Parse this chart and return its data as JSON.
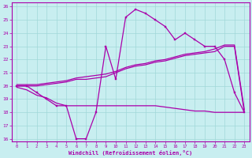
{
  "xlabel": "Windchill (Refroidissement éolien,°C)",
  "bg_color": "#c8eef0",
  "grid_color": "#a0d8d8",
  "line_color": "#aa00aa",
  "xlim": [
    -0.5,
    23.5
  ],
  "ylim": [
    15.8,
    26.3
  ],
  "xticks": [
    0,
    1,
    2,
    3,
    4,
    5,
    6,
    7,
    8,
    9,
    10,
    11,
    12,
    13,
    14,
    15,
    16,
    17,
    18,
    19,
    20,
    21,
    22,
    23
  ],
  "yticks": [
    16,
    17,
    18,
    19,
    20,
    21,
    22,
    23,
    24,
    25,
    26
  ],
  "line1_x": [
    0,
    1,
    2,
    3,
    4,
    5,
    6,
    7,
    8,
    9,
    10,
    11,
    12,
    13,
    14,
    15,
    16,
    17,
    18,
    19,
    20,
    21,
    22,
    23
  ],
  "line1_y": [
    20,
    20,
    19.5,
    19,
    18.5,
    18.5,
    16,
    16,
    18,
    23,
    20.5,
    25.2,
    25.8,
    25.5,
    25,
    24.5,
    23.5,
    24,
    23.5,
    23,
    23,
    22,
    19.5,
    18
  ],
  "line2_x": [
    0,
    1,
    2,
    3,
    4,
    5,
    6,
    7,
    8,
    9,
    10,
    11,
    12,
    13,
    14,
    15,
    16,
    17,
    18,
    19,
    20,
    21,
    22,
    23
  ],
  "line2_y": [
    20.0,
    20.0,
    20.0,
    20.1,
    20.2,
    20.3,
    20.5,
    20.5,
    20.6,
    20.7,
    21.0,
    21.3,
    21.5,
    21.6,
    21.8,
    21.9,
    22.1,
    22.3,
    22.4,
    22.5,
    22.6,
    23.0,
    23.0,
    18.0
  ],
  "line3_x": [
    0,
    1,
    2,
    3,
    4,
    5,
    6,
    7,
    8,
    9,
    10,
    11,
    12,
    13,
    14,
    15,
    16,
    17,
    18,
    19,
    20,
    21,
    22,
    23
  ],
  "line3_y": [
    20.1,
    20.1,
    20.1,
    20.2,
    20.3,
    20.4,
    20.6,
    20.7,
    20.8,
    20.9,
    21.1,
    21.4,
    21.6,
    21.7,
    21.9,
    22.0,
    22.2,
    22.4,
    22.5,
    22.6,
    22.8,
    23.1,
    23.1,
    18.2
  ],
  "line4_x": [
    0,
    1,
    2,
    3,
    4,
    5,
    6,
    7,
    8,
    9,
    10,
    11,
    12,
    13,
    14,
    15,
    16,
    17,
    18,
    19,
    20,
    21,
    22,
    23
  ],
  "line4_y": [
    19.9,
    19.7,
    19.3,
    19.1,
    18.7,
    18.5,
    18.5,
    18.5,
    18.5,
    18.5,
    18.5,
    18.5,
    18.5,
    18.5,
    18.5,
    18.4,
    18.3,
    18.2,
    18.1,
    18.1,
    18.0,
    18.0,
    18.0,
    18.0
  ]
}
